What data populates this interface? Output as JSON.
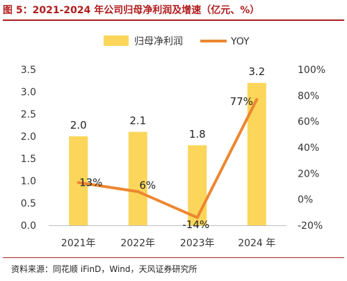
{
  "title": "图 5：2021-2024 年公司归母净利润及增速（亿元、%）",
  "source": "资料来源：同花顺 iFinD，Wind，天风证券研究所",
  "chart_data": {
    "type": "bar",
    "categories": [
      "2021年",
      "2022年",
      "2023年",
      "2024 年"
    ],
    "series": [
      {
        "name": "归母净利润",
        "type": "bar",
        "axis": "left",
        "color": "#fbd65a",
        "values": [
          2.0,
          2.1,
          1.8,
          3.2
        ],
        "labels": [
          "2.0",
          "2.1",
          "1.8",
          "3.2"
        ]
      },
      {
        "name": "YOY",
        "type": "line",
        "axis": "right",
        "color": "#ed8630",
        "values": [
          13,
          6,
          -14,
          77
        ],
        "labels": [
          "13%",
          "6%",
          "-14%",
          "77%"
        ]
      }
    ],
    "y_left": {
      "lim": [
        0,
        3.5
      ],
      "ticks": [
        "0.0",
        "0.5",
        "1.0",
        "1.5",
        "2.0",
        "2.5",
        "3.0",
        "3.5"
      ]
    },
    "y_right": {
      "lim": [
        -20,
        100
      ],
      "ticks": [
        "-20%",
        "0%",
        "20%",
        "40%",
        "60%",
        "80%",
        "100%"
      ]
    },
    "legend_position": "top",
    "grid": false
  }
}
